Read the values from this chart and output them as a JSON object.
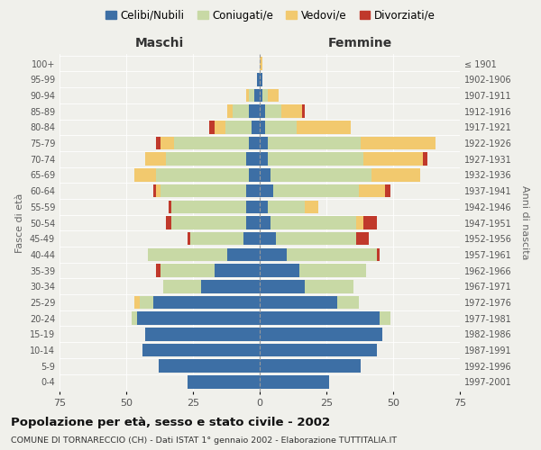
{
  "age_groups": [
    "0-4",
    "5-9",
    "10-14",
    "15-19",
    "20-24",
    "25-29",
    "30-34",
    "35-39",
    "40-44",
    "45-49",
    "50-54",
    "55-59",
    "60-64",
    "65-69",
    "70-74",
    "75-79",
    "80-84",
    "85-89",
    "90-94",
    "95-99",
    "100+"
  ],
  "birth_years": [
    "1997-2001",
    "1992-1996",
    "1987-1991",
    "1982-1986",
    "1977-1981",
    "1972-1976",
    "1967-1971",
    "1962-1966",
    "1957-1961",
    "1952-1956",
    "1947-1951",
    "1942-1946",
    "1937-1941",
    "1932-1936",
    "1927-1931",
    "1922-1926",
    "1917-1921",
    "1912-1916",
    "1907-1911",
    "1902-1906",
    "≤ 1901"
  ],
  "maschi": {
    "celibe": [
      27,
      38,
      44,
      43,
      46,
      40,
      22,
      17,
      12,
      6,
      5,
      5,
      5,
      4,
      5,
      4,
      3,
      4,
      2,
      1,
      0
    ],
    "coniugato": [
      0,
      0,
      0,
      0,
      2,
      5,
      14,
      20,
      30,
      20,
      28,
      28,
      32,
      35,
      30,
      28,
      10,
      6,
      2,
      0,
      0
    ],
    "vedovo": [
      0,
      0,
      0,
      0,
      0,
      2,
      0,
      0,
      0,
      0,
      0,
      0,
      2,
      8,
      8,
      5,
      4,
      2,
      1,
      0,
      0
    ],
    "divorziato": [
      0,
      0,
      0,
      0,
      0,
      0,
      0,
      2,
      0,
      1,
      2,
      1,
      1,
      0,
      0,
      2,
      2,
      0,
      0,
      0,
      0
    ]
  },
  "femmine": {
    "nubile": [
      26,
      38,
      44,
      46,
      45,
      29,
      17,
      15,
      10,
      6,
      4,
      3,
      5,
      4,
      3,
      3,
      2,
      2,
      1,
      1,
      0
    ],
    "coniugata": [
      0,
      0,
      0,
      0,
      4,
      8,
      18,
      25,
      34,
      30,
      32,
      14,
      32,
      38,
      36,
      35,
      12,
      6,
      2,
      0,
      0
    ],
    "vedova": [
      0,
      0,
      0,
      0,
      0,
      0,
      0,
      0,
      0,
      0,
      3,
      5,
      10,
      18,
      22,
      28,
      20,
      8,
      4,
      0,
      1
    ],
    "divorziata": [
      0,
      0,
      0,
      0,
      0,
      0,
      0,
      0,
      1,
      5,
      5,
      0,
      2,
      0,
      2,
      0,
      0,
      1,
      0,
      0,
      0
    ]
  },
  "colors": {
    "celibe_nubile": "#3d6fa5",
    "coniugato": "#c8d9a5",
    "vedovo": "#f2c96e",
    "divorziato": "#c0392b"
  },
  "xlim": 75,
  "title": "Popolazione per età, sesso e stato civile - 2002",
  "subtitle": "COMUNE DI TORNARECCIO (CH) - Dati ISTAT 1° gennaio 2002 - Elaborazione TUTTITALIA.IT",
  "ylabel_left": "Fasce di età",
  "ylabel_right": "Anni di nascita",
  "xlabel_left": "Maschi",
  "xlabel_right": "Femmine",
  "legend_labels": [
    "Celibi/Nubili",
    "Coniugati/e",
    "Vedovi/e",
    "Divorziati/e"
  ],
  "background_color": "#f0f0eb"
}
